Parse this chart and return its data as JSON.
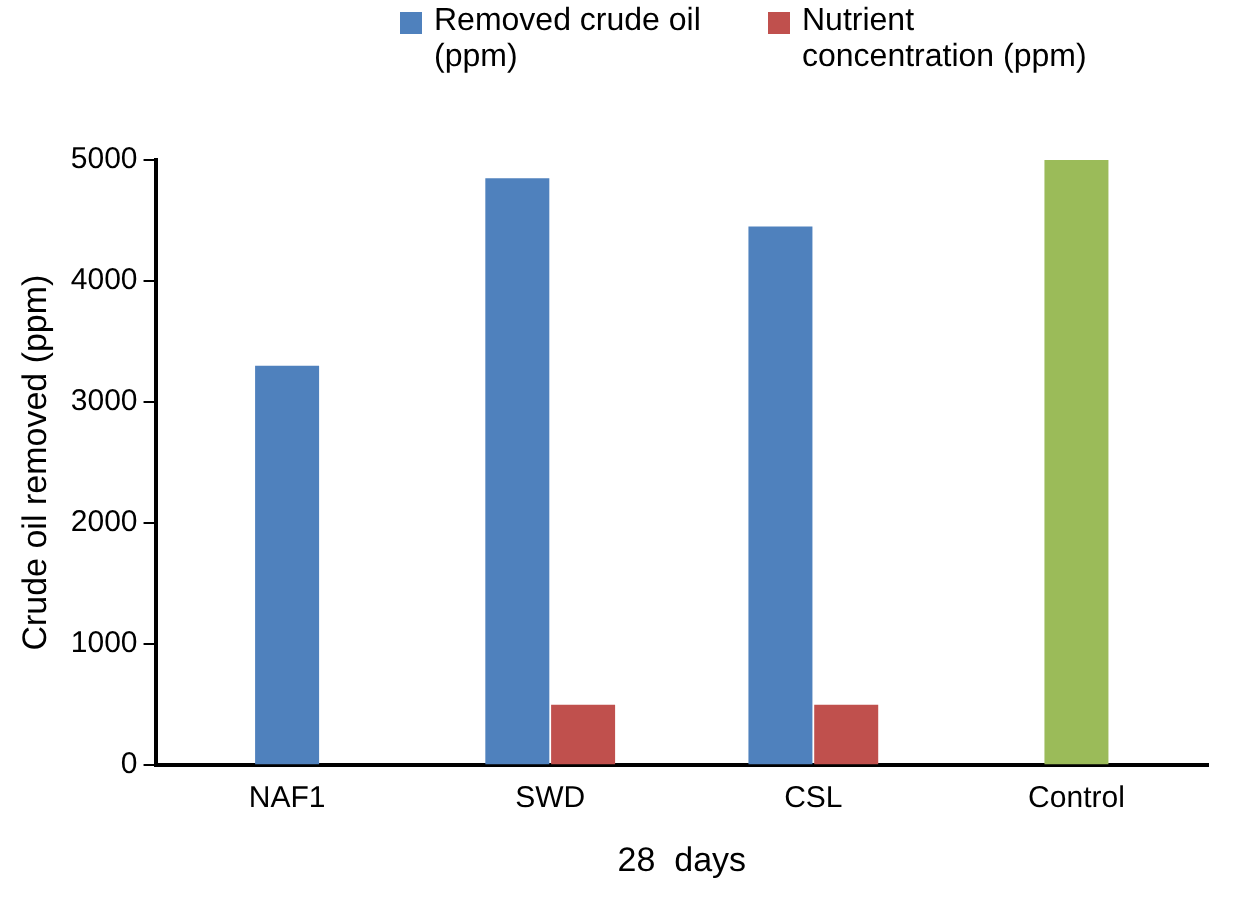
{
  "chart_data": {
    "type": "bar",
    "xlabel": "28  days",
    "ylabel": "Crude oil removed (ppm)",
    "categories": [
      "NAF1",
      "SWD",
      "CSL",
      "Control"
    ],
    "series": [
      {
        "name": "Removed crude oil (ppm)",
        "color": "#4f81bd",
        "colors": [
          "#4f81bd",
          "#4f81bd",
          "#4f81bd",
          "#9bbb59"
        ],
        "values": [
          3300,
          4850,
          4450,
          5000
        ]
      },
      {
        "name": "Nutrient concentration (ppm)",
        "color": "#c0504d",
        "values": [
          null,
          500,
          500,
          null
        ]
      }
    ],
    "ylim": [
      0,
      5000
    ],
    "yticks": [
      0,
      1000,
      2000,
      3000,
      4000,
      5000
    ],
    "grid": false,
    "legend": "top"
  }
}
